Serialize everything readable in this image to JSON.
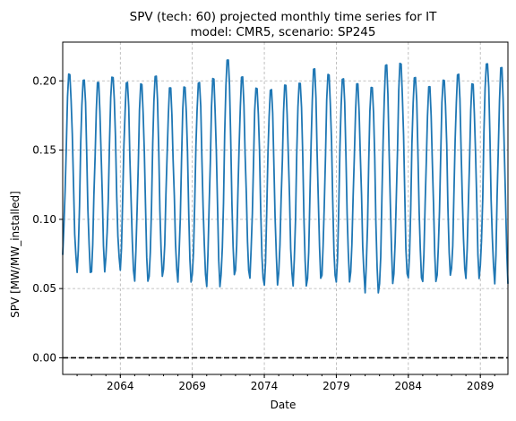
{
  "chart_data": {
    "type": "line",
    "title": "SPV (tech: 60) projected monthly time series for IT",
    "subtitle": "model: CMR5, scenario: SP245",
    "xlabel": "Date",
    "ylabel": "SPV [MW/MW_installed]",
    "x_range": [
      "2060-01",
      "2090-12"
    ],
    "x_tick_labels": [
      "2064",
      "2069",
      "2074",
      "2079",
      "2084",
      "2089"
    ],
    "ylim": [
      -0.012,
      0.228
    ],
    "y_ticks": [
      0.0,
      0.05,
      0.1,
      0.15,
      0.2
    ],
    "y_tick_labels": [
      "0.00",
      "0.05",
      "0.10",
      "0.15",
      "0.20"
    ],
    "grid": true,
    "line_color": "#1f77b4",
    "reference_line": {
      "y": 0.0,
      "style": "dashed",
      "color": "#000000"
    },
    "series": [
      {
        "frequency": "monthly",
        "start": "2060-01",
        "annual_peaks": [
          0.207,
          0.203,
          0.201,
          0.205,
          0.201,
          0.2,
          0.206,
          0.197,
          0.198,
          0.201,
          0.204,
          0.218,
          0.205,
          0.197,
          0.196,
          0.199,
          0.201,
          0.211,
          0.207,
          0.204,
          0.2,
          0.198,
          0.214,
          0.215,
          0.205,
          0.198,
          0.203,
          0.207,
          0.2,
          0.215,
          0.212
        ],
        "annual_troughs": [
          0.072,
          0.059,
          0.06,
          0.07,
          0.061,
          0.053,
          0.056,
          0.062,
          0.052,
          0.058,
          0.049,
          0.057,
          0.061,
          0.055,
          0.05,
          0.059,
          0.049,
          0.055,
          0.057,
          0.052,
          0.06,
          0.044,
          0.051,
          0.058,
          0.055,
          0.053,
          0.057,
          0.062,
          0.055,
          0.064,
          0.051
        ]
      }
    ]
  }
}
